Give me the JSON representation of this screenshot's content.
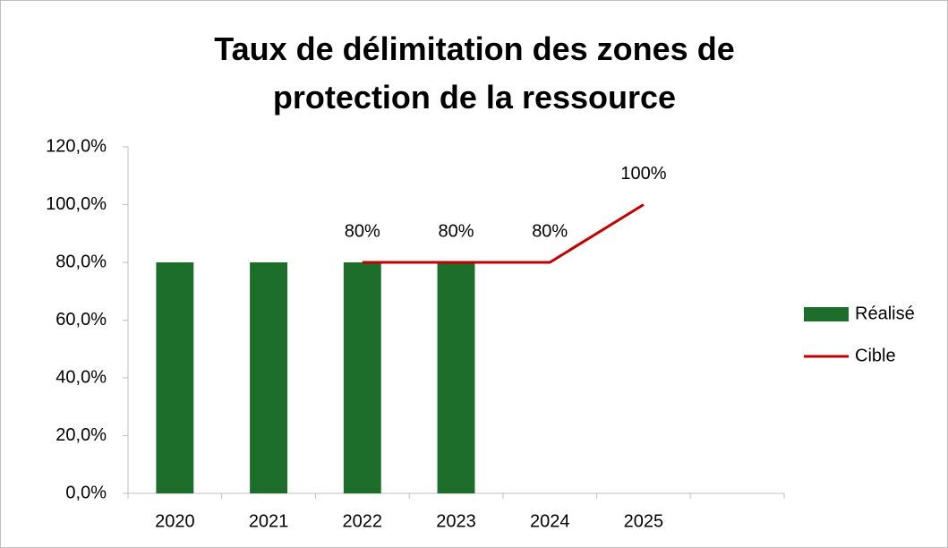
{
  "chart_data": {
    "type": "bar",
    "title": "Taux de délimitation des zones de protection de la ressource",
    "categories": [
      "2020",
      "2021",
      "2022",
      "2023",
      "2024",
      "2025",
      null
    ],
    "series": [
      {
        "name": "Réalisé",
        "type": "bar",
        "color": "#1e6e2b",
        "values": [
          80,
          80,
          80,
          80,
          null,
          null,
          null
        ]
      },
      {
        "name": "Cible",
        "type": "line",
        "color": "#c00000",
        "values": [
          null,
          null,
          80,
          80,
          80,
          100,
          null
        ],
        "value_labels": [
          null,
          null,
          "80%",
          "80%",
          "80%",
          "100%",
          null
        ]
      }
    ],
    "ylim": [
      0,
      120
    ],
    "yticks": [
      {
        "value": 0,
        "label": "0,0%"
      },
      {
        "value": 20,
        "label": "20,0%"
      },
      {
        "value": 40,
        "label": "40,0%"
      },
      {
        "value": 60,
        "label": "60,0%"
      },
      {
        "value": 80,
        "label": "80,0%"
      },
      {
        "value": 100,
        "label": "100,0%"
      },
      {
        "value": 120,
        "label": "120,0%"
      }
    ],
    "grid": false,
    "legend": "right"
  }
}
